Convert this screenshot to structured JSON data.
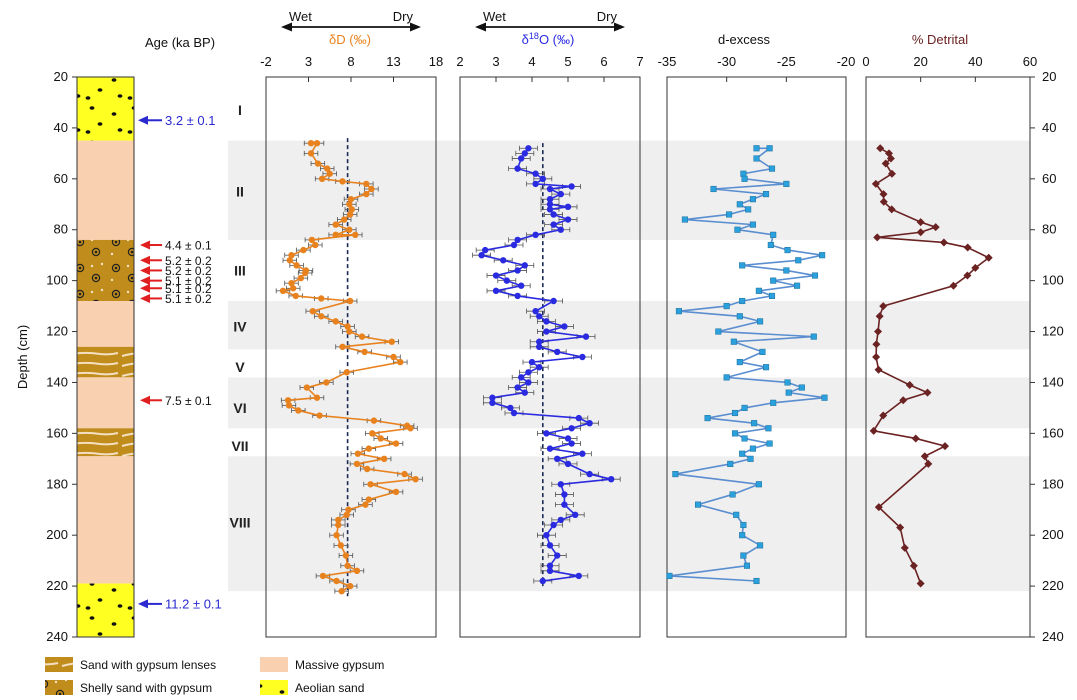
{
  "colors": {
    "dD": "#e8821e",
    "dD_stroke": "#c86810",
    "d18O": "#2a2ae0",
    "dex_line": "#5a8ed0",
    "dex_marker": "#2aa0dc",
    "detrital": "#6b2222",
    "band": "#efefef",
    "gypsum": "#f9d1b1",
    "aeolian": "#ffff22",
    "shelly": "#c08c1c",
    "blue_arrow": "#2a2ad0",
    "red_arrow": "#e02020"
  },
  "labels": {
    "age_title": "Age (ka BP)",
    "depth_title": "Depth (cm)",
    "dex_title": "d-excess",
    "det_title": "% Detrital",
    "wet": "Wet",
    "dry": "Dry"
  },
  "chart_data": [
    {
      "type": "column",
      "ylabel": "Depth (cm)",
      "ylim": [
        20,
        240
      ],
      "y_ticks": [
        20,
        40,
        60,
        80,
        100,
        120,
        140,
        160,
        180,
        200,
        220,
        240
      ],
      "units": [
        {
          "from": 20,
          "to": 45,
          "lith": "aeolian"
        },
        {
          "from": 45,
          "to": 84,
          "lith": "gypsum"
        },
        {
          "from": 84,
          "to": 108,
          "lith": "shelly"
        },
        {
          "from": 108,
          "to": 126,
          "lith": "gypsum"
        },
        {
          "from": 126,
          "to": 138,
          "lith": "sandlens"
        },
        {
          "from": 138,
          "to": 158,
          "lith": "gypsum"
        },
        {
          "from": 158,
          "to": 169,
          "lith": "sandlens"
        },
        {
          "from": 169,
          "to": 219,
          "lith": "gypsum"
        },
        {
          "from": 219,
          "to": 240,
          "lith": "aeolian"
        }
      ],
      "ages": [
        {
          "depth": 37,
          "label": "3.2 ± 0.1",
          "color": "blue"
        },
        {
          "depth": 86,
          "label": "4.4 ± 0.1",
          "color": "red"
        },
        {
          "depth": 92,
          "label": "5.2 ± 0.2",
          "color": "red"
        },
        {
          "depth": 96,
          "label": "5.2 ± 0.2",
          "color": "red"
        },
        {
          "depth": 100,
          "label": "5.1 ± 0.2",
          "color": "red"
        },
        {
          "depth": 103,
          "label": "5.1 ± 0.2",
          "color": "red"
        },
        {
          "depth": 107,
          "label": "5.1 ± 0.2",
          "color": "red"
        },
        {
          "depth": 147,
          "label": "7.5 ± 0.1",
          "color": "red"
        },
        {
          "depth": 227,
          "label": "11.2 ± 0.1",
          "color": "blue"
        }
      ],
      "zones": [
        {
          "name": "I",
          "depth": 33
        },
        {
          "name": "II",
          "depth": 65
        },
        {
          "name": "III",
          "depth": 96
        },
        {
          "name": "IV",
          "depth": 118
        },
        {
          "name": "V",
          "depth": 134
        },
        {
          "name": "VI",
          "depth": 150
        },
        {
          "name": "VII",
          "depth": 165
        },
        {
          "name": "VIII",
          "depth": 195
        }
      ],
      "bands": [
        [
          45,
          84
        ],
        [
          108,
          127
        ],
        [
          138,
          158
        ],
        [
          169,
          222
        ]
      ],
      "legend": [
        {
          "key": "sandlens",
          "label": "Sand with gypsum lenses"
        },
        {
          "key": "shelly",
          "label": "Shelly sand with gypsum"
        },
        {
          "key": "gypsum",
          "label": "Massive gypsum"
        },
        {
          "key": "aeolian",
          "label": "Aeolian sand"
        }
      ]
    },
    {
      "type": "line",
      "title": "δD (‰)",
      "xlim": [
        -2,
        18
      ],
      "x_ticks": [
        -2,
        3,
        8,
        13,
        18
      ],
      "x_tick_labels": [
        "-2",
        "3",
        "8",
        "13",
        "18"
      ],
      "mean": 7.6,
      "error_bar": 0.8,
      "points": [
        [
          3.3,
          46
        ],
        [
          4.0,
          46
        ],
        [
          3.3,
          50
        ],
        [
          4.1,
          54
        ],
        [
          5.2,
          56
        ],
        [
          5.5,
          58
        ],
        [
          4.6,
          60
        ],
        [
          7.0,
          61
        ],
        [
          9.8,
          62
        ],
        [
          10.4,
          64
        ],
        [
          9.8,
          66
        ],
        [
          8.0,
          68
        ],
        [
          7.8,
          70
        ],
        [
          8.1,
          72
        ],
        [
          7.9,
          74
        ],
        [
          7.2,
          76
        ],
        [
          6.2,
          78
        ],
        [
          7.8,
          80
        ],
        [
          6.2,
          82
        ],
        [
          8.5,
          82
        ],
        [
          3.4,
          84
        ],
        [
          3.8,
          86
        ],
        [
          2.4,
          88
        ],
        [
          1.0,
          90
        ],
        [
          0.8,
          92
        ],
        [
          1.6,
          94
        ],
        [
          2.7,
          96
        ],
        [
          2.6,
          97
        ],
        [
          2.1,
          99
        ],
        [
          1.0,
          101
        ],
        [
          1.2,
          103
        ],
        [
          0.0,
          104
        ],
        [
          1.5,
          106
        ],
        [
          4.5,
          107
        ],
        [
          7.9,
          108
        ],
        [
          3.5,
          112
        ],
        [
          4.5,
          114
        ],
        [
          6.2,
          116
        ],
        [
          7.6,
          118
        ],
        [
          7.8,
          120
        ],
        [
          9.3,
          122
        ],
        [
          12.8,
          124
        ],
        [
          7.0,
          126
        ],
        [
          9.6,
          128
        ],
        [
          13.0,
          130
        ],
        [
          13.8,
          132
        ],
        [
          7.5,
          136
        ],
        [
          5.1,
          140
        ],
        [
          2.8,
          142
        ],
        [
          4.0,
          146
        ],
        [
          0.6,
          147
        ],
        [
          0.7,
          149
        ],
        [
          1.8,
          151
        ],
        [
          4.3,
          153
        ],
        [
          10.7,
          155
        ],
        [
          14.6,
          157
        ],
        [
          15.0,
          158
        ],
        [
          10.5,
          160
        ],
        [
          11.5,
          162
        ],
        [
          13.3,
          164
        ],
        [
          10.1,
          166
        ],
        [
          8.8,
          168
        ],
        [
          11.9,
          170
        ],
        [
          8.7,
          172
        ],
        [
          9.9,
          174
        ],
        [
          14.3,
          176
        ],
        [
          15.6,
          178
        ],
        [
          10.3,
          180
        ],
        [
          13.3,
          183
        ],
        [
          10.1,
          186
        ],
        [
          9.7,
          188
        ],
        [
          7.7,
          190
        ],
        [
          7.5,
          192
        ],
        [
          6.5,
          194
        ],
        [
          6.5,
          196
        ],
        [
          6.3,
          200
        ],
        [
          6.8,
          204
        ],
        [
          7.4,
          208
        ],
        [
          7.6,
          212
        ],
        [
          8.7,
          214
        ],
        [
          4.7,
          216
        ],
        [
          6.3,
          218
        ],
        [
          7.9,
          220
        ],
        [
          6.9,
          222
        ]
      ]
    },
    {
      "type": "line",
      "title": "δ18O (‰)",
      "xlim": [
        2,
        7
      ],
      "x_ticks": [
        2,
        3,
        4,
        5,
        6,
        7
      ],
      "x_tick_labels": [
        "2",
        "3",
        "4",
        "5",
        "6",
        "7"
      ],
      "mean": 4.3,
      "error_bar": 0.25,
      "points": [
        [
          3.8,
          50
        ],
        [
          3.9,
          48
        ],
        [
          3.7,
          52
        ],
        [
          3.6,
          56
        ],
        [
          4.1,
          58
        ],
        [
          4.3,
          60
        ],
        [
          4.1,
          62
        ],
        [
          5.1,
          63
        ],
        [
          4.5,
          64
        ],
        [
          4.8,
          66
        ],
        [
          4.5,
          68
        ],
        [
          4.5,
          70
        ],
        [
          5.0,
          71
        ],
        [
          4.5,
          72
        ],
        [
          4.6,
          74
        ],
        [
          5.0,
          76
        ],
        [
          4.6,
          78
        ],
        [
          4.8,
          80
        ],
        [
          4.1,
          82
        ],
        [
          3.6,
          84
        ],
        [
          3.5,
          86
        ],
        [
          2.7,
          88
        ],
        [
          2.6,
          90
        ],
        [
          3.2,
          92
        ],
        [
          3.8,
          94
        ],
        [
          3.6,
          96
        ],
        [
          3.0,
          98
        ],
        [
          3.3,
          100
        ],
        [
          3.7,
          102
        ],
        [
          3.0,
          104
        ],
        [
          3.6,
          106
        ],
        [
          4.6,
          108
        ],
        [
          4.1,
          112
        ],
        [
          4.2,
          114
        ],
        [
          4.4,
          116
        ],
        [
          4.9,
          118
        ],
        [
          4.4,
          120
        ],
        [
          5.5,
          122
        ],
        [
          4.2,
          124
        ],
        [
          4.2,
          126
        ],
        [
          4.7,
          128
        ],
        [
          5.4,
          130
        ],
        [
          4.0,
          132
        ],
        [
          4.2,
          134
        ],
        [
          3.9,
          136
        ],
        [
          3.7,
          138
        ],
        [
          3.9,
          140
        ],
        [
          3.6,
          142
        ],
        [
          3.8,
          144
        ],
        [
          2.9,
          146
        ],
        [
          2.9,
          148
        ],
        [
          3.4,
          150
        ],
        [
          3.5,
          152
        ],
        [
          5.3,
          154
        ],
        [
          5.6,
          156
        ],
        [
          5.1,
          158
        ],
        [
          4.4,
          160
        ],
        [
          5.0,
          162
        ],
        [
          5.1,
          164
        ],
        [
          4.5,
          166
        ],
        [
          5.4,
          168
        ],
        [
          4.7,
          170
        ],
        [
          5.0,
          172
        ],
        [
          5.6,
          176
        ],
        [
          6.2,
          178
        ],
        [
          4.8,
          180
        ],
        [
          4.9,
          184
        ],
        [
          4.9,
          188
        ],
        [
          5.2,
          192
        ],
        [
          4.8,
          194
        ],
        [
          4.6,
          196
        ],
        [
          4.4,
          200
        ],
        [
          4.5,
          204
        ],
        [
          4.7,
          208
        ],
        [
          4.5,
          212
        ],
        [
          4.5,
          214
        ],
        [
          5.3,
          216
        ],
        [
          4.3,
          218
        ]
      ]
    },
    {
      "type": "line",
      "title": "d-excess",
      "xlim": [
        -35,
        -20
      ],
      "x_ticks": [
        -35,
        -30,
        -25,
        -20
      ],
      "x_tick_labels": [
        "-35",
        "-30",
        "-25",
        "-20"
      ],
      "points": [
        [
          -27.5,
          48
        ],
        [
          -26.4,
          48
        ],
        [
          -27.5,
          52
        ],
        [
          -26.2,
          56
        ],
        [
          -28.6,
          58
        ],
        [
          -28.5,
          60
        ],
        [
          -25.0,
          62
        ],
        [
          -31.1,
          64
        ],
        [
          -26.7,
          66
        ],
        [
          -27.8,
          68
        ],
        [
          -28.9,
          70
        ],
        [
          -28.2,
          72
        ],
        [
          -29.8,
          74
        ],
        [
          -33.5,
          76
        ],
        [
          -27.8,
          78
        ],
        [
          -29.1,
          80
        ],
        [
          -26.1,
          82
        ],
        [
          -26.3,
          86
        ],
        [
          -24.9,
          88
        ],
        [
          -22.0,
          90
        ],
        [
          -24.0,
          92
        ],
        [
          -28.7,
          94
        ],
        [
          -25.0,
          96
        ],
        [
          -22.6,
          98
        ],
        [
          -26.1,
          100
        ],
        [
          -24.1,
          102
        ],
        [
          -27.3,
          104
        ],
        [
          -26.2,
          106
        ],
        [
          -28.7,
          108
        ],
        [
          -30.0,
          110
        ],
        [
          -34.0,
          112
        ],
        [
          -28.9,
          114
        ],
        [
          -27.2,
          116
        ],
        [
          -30.7,
          120
        ],
        [
          -22.7,
          122
        ],
        [
          -29.4,
          124
        ],
        [
          -27.0,
          128
        ],
        [
          -28.9,
          132
        ],
        [
          -26.7,
          134
        ],
        [
          -30.0,
          138
        ],
        [
          -24.9,
          140
        ],
        [
          -23.7,
          142
        ],
        [
          -24.8,
          144
        ],
        [
          -21.8,
          146
        ],
        [
          -26.1,
          148
        ],
        [
          -28.5,
          150
        ],
        [
          -29.3,
          152
        ],
        [
          -31.6,
          154
        ],
        [
          -27.7,
          156
        ],
        [
          -26.5,
          158
        ],
        [
          -29.3,
          160
        ],
        [
          -28.5,
          162
        ],
        [
          -26.4,
          164
        ],
        [
          -27.8,
          166
        ],
        [
          -28.7,
          168
        ],
        [
          -28.0,
          170
        ],
        [
          -29.7,
          172
        ],
        [
          -34.3,
          176
        ],
        [
          -27.3,
          180
        ],
        [
          -29.5,
          184
        ],
        [
          -32.4,
          188
        ],
        [
          -29.2,
          192
        ],
        [
          -28.6,
          196
        ],
        [
          -28.7,
          200
        ],
        [
          -27.2,
          204
        ],
        [
          -28.6,
          208
        ],
        [
          -28.3,
          212
        ],
        [
          -34.8,
          216
        ],
        [
          -27.5,
          218
        ]
      ]
    },
    {
      "type": "line",
      "title": "% Detrital",
      "xlim": [
        0,
        60
      ],
      "x_ticks": [
        0,
        20,
        40,
        60
      ],
      "x_tick_labels": [
        "0",
        "20",
        "40",
        "60"
      ],
      "points": [
        [
          5.2,
          48
        ],
        [
          8.4,
          50
        ],
        [
          9.1,
          52
        ],
        [
          7.2,
          54
        ],
        [
          9.5,
          58
        ],
        [
          3.6,
          62
        ],
        [
          6.4,
          66
        ],
        [
          6.5,
          69
        ],
        [
          9.4,
          72
        ],
        [
          20.0,
          77
        ],
        [
          25.5,
          79
        ],
        [
          20.0,
          81
        ],
        [
          4.1,
          83
        ],
        [
          28.5,
          85
        ],
        [
          37.2,
          87
        ],
        [
          44.9,
          91
        ],
        [
          40.0,
          95
        ],
        [
          37.1,
          98
        ],
        [
          32.0,
          102
        ],
        [
          6.3,
          110
        ],
        [
          5.0,
          114
        ],
        [
          4.4,
          120
        ],
        [
          3.8,
          125
        ],
        [
          3.7,
          130
        ],
        [
          4.6,
          135
        ],
        [
          16.0,
          141
        ],
        [
          22.5,
          144
        ],
        [
          13.6,
          147
        ],
        [
          6.3,
          153
        ],
        [
          2.8,
          159
        ],
        [
          18.2,
          162
        ],
        [
          28.9,
          165
        ],
        [
          21.5,
          169
        ],
        [
          22.8,
          172
        ],
        [
          4.7,
          189
        ],
        [
          12.5,
          197
        ],
        [
          14.2,
          205
        ],
        [
          17.5,
          212
        ],
        [
          20.0,
          219
        ]
      ]
    }
  ]
}
